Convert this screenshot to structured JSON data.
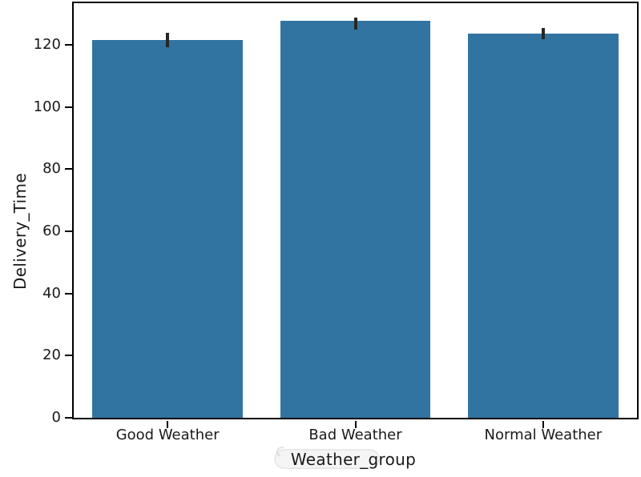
{
  "chart_data": {
    "type": "bar",
    "title": "",
    "categories": [
      "Good Weather",
      "Bad Weather",
      "Normal Weather"
    ],
    "values": [
      121.5,
      127.8,
      123.7
    ],
    "error_bars": [
      {
        "low": 119.3,
        "high": 123.9
      },
      {
        "low": 124.9,
        "high": 128.8
      },
      {
        "low": 121.8,
        "high": 125.4
      }
    ],
    "xlabel": "Weather_group",
    "ylabel": "Delivery_Time",
    "ytick_labels": [
      "0",
      "20",
      "40",
      "60",
      "80",
      "100",
      "120"
    ],
    "yticks": [
      0,
      20,
      40,
      60,
      80,
      100,
      120
    ],
    "ylim": [
      0,
      133.4
    ],
    "xlim_categories": 3,
    "bar_width_fraction": 0.8,
    "grid": false,
    "legend": null,
    "colors": {
      "bar_fill": "#3274A1",
      "error_bar": "#262626",
      "axis": "#000000",
      "text": "#1a1a1a",
      "background": "#ffffff"
    }
  }
}
